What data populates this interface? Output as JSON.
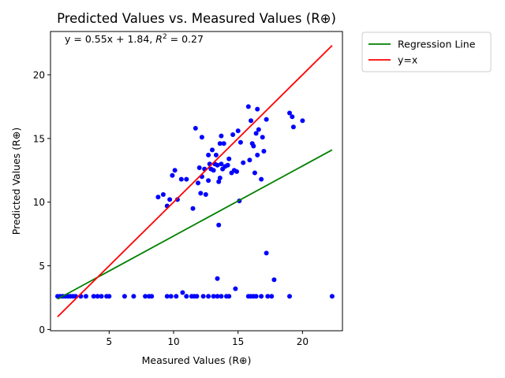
{
  "chart_data": {
    "type": "scatter",
    "title": "Predicted Values vs. Measured Values (R⊕)",
    "xlabel": "Measured Values (R⊕)",
    "ylabel": "Predicted Values (R⊕)",
    "xlim": [
      0.45,
      23.1
    ],
    "ylim": [
      -0.1,
      23.4
    ],
    "xticks": [
      5,
      10,
      15,
      20
    ],
    "yticks": [
      0,
      5,
      10,
      15,
      20
    ],
    "grid": false,
    "legend_position": "outside right, top",
    "annotation": {
      "prefix": "y = 0.55x + 1.84, ",
      "r2_symbol": "R",
      "r2_exp": "2",
      "r2_value": " = 0.27"
    },
    "regression_line": {
      "name": "Regression Line",
      "slope": 0.55,
      "intercept": 1.84,
      "x_range": [
        1.0,
        22.3
      ],
      "color": "#008000"
    },
    "identity_line": {
      "name": "y=x",
      "x_range": [
        1.0,
        22.3
      ],
      "color": "#ff0000"
    },
    "points_color": "#0000ff",
    "points": [
      [
        1.0,
        2.6
      ],
      [
        1.2,
        2.6
      ],
      [
        1.4,
        2.6
      ],
      [
        1.6,
        2.6
      ],
      [
        1.8,
        2.6
      ],
      [
        2.0,
        2.6
      ],
      [
        2.2,
        2.6
      ],
      [
        2.4,
        2.6
      ],
      [
        2.8,
        2.6
      ],
      [
        3.2,
        2.6
      ],
      [
        3.8,
        2.6
      ],
      [
        4.1,
        2.6
      ],
      [
        4.4,
        2.6
      ],
      [
        4.8,
        2.6
      ],
      [
        5.0,
        2.6
      ],
      [
        6.2,
        2.6
      ],
      [
        6.9,
        2.6
      ],
      [
        7.8,
        2.6
      ],
      [
        8.1,
        2.6
      ],
      [
        8.3,
        2.6
      ],
      [
        9.5,
        2.6
      ],
      [
        9.8,
        2.6
      ],
      [
        10.2,
        2.6
      ],
      [
        10.7,
        2.9
      ],
      [
        11.0,
        2.6
      ],
      [
        11.4,
        2.6
      ],
      [
        11.6,
        2.6
      ],
      [
        11.8,
        2.6
      ],
      [
        12.3,
        2.6
      ],
      [
        12.7,
        2.6
      ],
      [
        13.1,
        2.6
      ],
      [
        13.4,
        2.6
      ],
      [
        13.7,
        2.6
      ],
      [
        14.1,
        2.6
      ],
      [
        14.3,
        2.6
      ],
      [
        14.8,
        3.2
      ],
      [
        15.8,
        2.6
      ],
      [
        16.0,
        2.6
      ],
      [
        16.2,
        2.6
      ],
      [
        16.4,
        2.6
      ],
      [
        16.8,
        2.6
      ],
      [
        17.3,
        2.6
      ],
      [
        17.6,
        2.6
      ],
      [
        19.0,
        2.6
      ],
      [
        22.3,
        2.6
      ],
      [
        13.4,
        4.0
      ],
      [
        17.2,
        6.0
      ],
      [
        17.8,
        3.9
      ],
      [
        13.5,
        8.2
      ],
      [
        8.8,
        10.4
      ],
      [
        9.2,
        10.6
      ],
      [
        9.5,
        9.7
      ],
      [
        9.7,
        10.2
      ],
      [
        9.9,
        12.1
      ],
      [
        10.1,
        12.5
      ],
      [
        10.3,
        10.2
      ],
      [
        10.6,
        11.8
      ],
      [
        11.0,
        11.8
      ],
      [
        11.5,
        9.5
      ],
      [
        11.7,
        15.8
      ],
      [
        11.9,
        11.5
      ],
      [
        12.0,
        12.7
      ],
      [
        12.1,
        10.7
      ],
      [
        12.2,
        15.1
      ],
      [
        12.2,
        12.0
      ],
      [
        12.4,
        12.6
      ],
      [
        12.5,
        10.6
      ],
      [
        12.7,
        11.7
      ],
      [
        12.7,
        13.7
      ],
      [
        12.8,
        13.0
      ],
      [
        12.9,
        12.6
      ],
      [
        13.0,
        14.1
      ],
      [
        13.1,
        12.5
      ],
      [
        13.2,
        13.0
      ],
      [
        13.3,
        13.7
      ],
      [
        13.4,
        12.9
      ],
      [
        13.5,
        11.6
      ],
      [
        13.6,
        11.9
      ],
      [
        13.6,
        14.6
      ],
      [
        13.7,
        15.2
      ],
      [
        13.7,
        13.0
      ],
      [
        13.8,
        12.6
      ],
      [
        13.9,
        14.6
      ],
      [
        14.0,
        12.8
      ],
      [
        14.2,
        12.9
      ],
      [
        14.3,
        13.4
      ],
      [
        14.5,
        12.3
      ],
      [
        14.6,
        15.3
      ],
      [
        14.7,
        12.5
      ],
      [
        14.9,
        12.4
      ],
      [
        15.0,
        15.6
      ],
      [
        15.1,
        10.1
      ],
      [
        15.2,
        14.7
      ],
      [
        15.4,
        13.1
      ],
      [
        15.8,
        17.5
      ],
      [
        15.9,
        13.3
      ],
      [
        16.0,
        16.4
      ],
      [
        16.1,
        14.6
      ],
      [
        16.2,
        14.4
      ],
      [
        16.3,
        12.3
      ],
      [
        16.4,
        15.4
      ],
      [
        16.5,
        17.3
      ],
      [
        16.5,
        13.7
      ],
      [
        16.6,
        15.7
      ],
      [
        16.8,
        11.8
      ],
      [
        16.9,
        15.1
      ],
      [
        17.0,
        14.0
      ],
      [
        17.2,
        16.5
      ],
      [
        19.0,
        17.0
      ],
      [
        19.2,
        16.7
      ],
      [
        19.3,
        15.9
      ],
      [
        20.0,
        16.4
      ]
    ]
  }
}
